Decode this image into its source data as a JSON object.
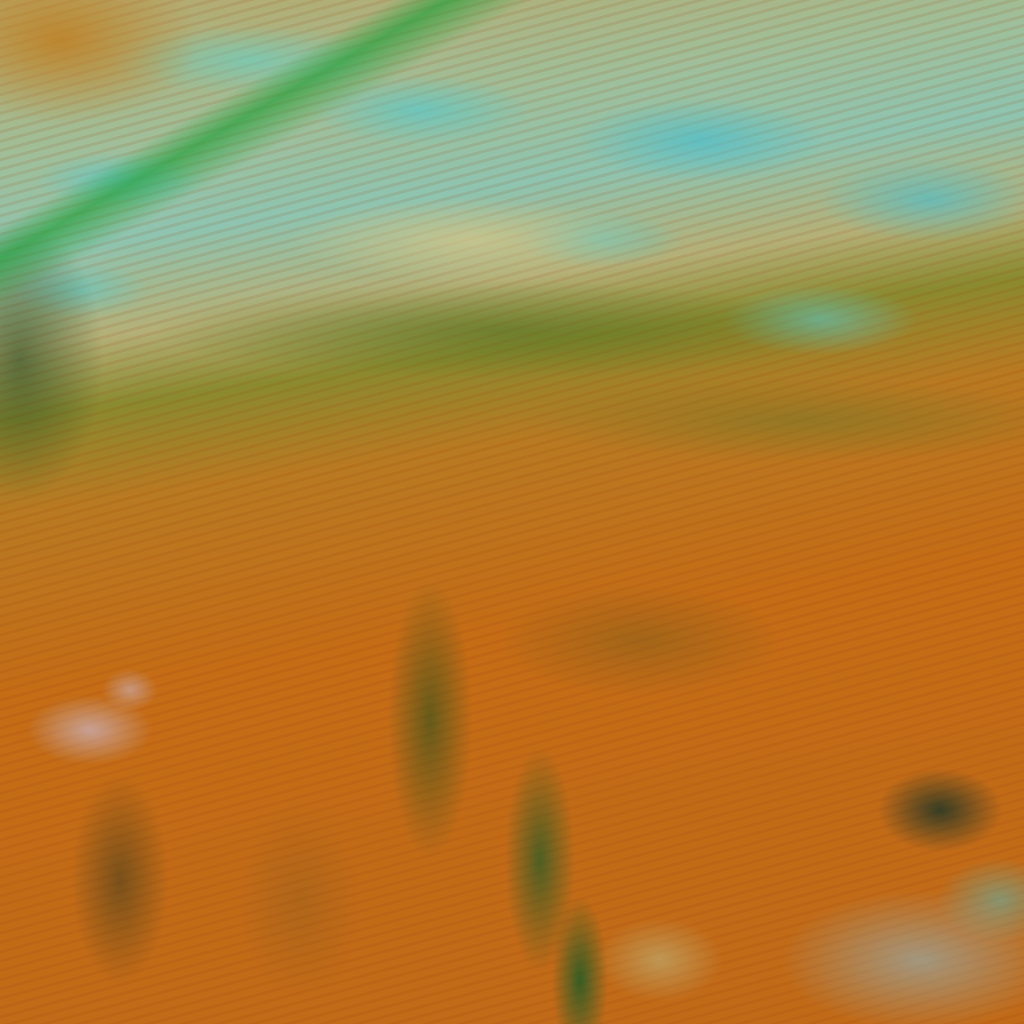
{
  "image": {
    "kind": "false-color satellite imagery",
    "palette": {
      "land_orange": "#c06a18",
      "cloud_cyan": "#5ac8c8",
      "dust_tan": "#d2c88c",
      "vegetation_green": "#3c6e1e"
    }
  }
}
